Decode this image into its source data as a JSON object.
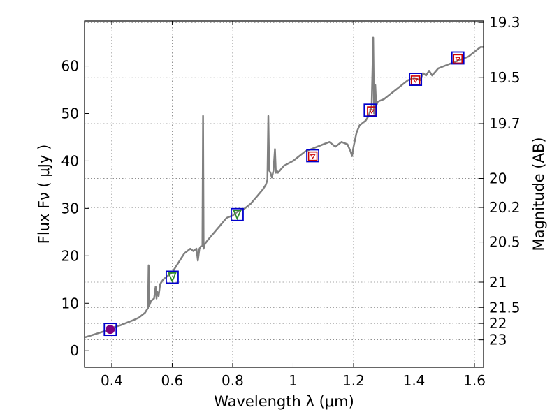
{
  "chart_data": {
    "type": "line",
    "xlabel": "Wavelength  λ (μm)",
    "ylabel": "Flux  Fν  ( μJy )",
    "ylabel_right": "Magnitude (AB)",
    "xlim": [
      0.31,
      1.63
    ],
    "ylim": [
      -3.5,
      69.5
    ],
    "grid": true,
    "x_ticks": [
      0.4,
      0.6,
      0.8,
      1.0,
      1.2,
      1.4,
      1.6
    ],
    "x_tick_labels": [
      "0.4",
      "0.6",
      "0.8",
      "1",
      "1.2",
      "1.4",
      "1.6"
    ],
    "y_ticks": [
      0,
      10,
      20,
      30,
      40,
      50,
      60
    ],
    "y_tick_labels": [
      "0",
      "10",
      "20",
      "30",
      "40",
      "50",
      "60"
    ],
    "magnitude_ticks": [
      19.3,
      19.5,
      19.7,
      20,
      20.2,
      20.5,
      21,
      21.5,
      22,
      23
    ],
    "magnitude_tick_labels": [
      "19.3",
      "19.5",
      "19.7",
      "20",
      "20.2",
      "20.5",
      "21",
      "21.5",
      "22",
      "23"
    ],
    "series": [
      {
        "name": "Spectrum",
        "color": "#808080",
        "x": [
          0.31,
          0.33,
          0.35,
          0.37,
          0.39,
          0.41,
          0.43,
          0.45,
          0.47,
          0.49,
          0.51,
          0.52,
          0.522,
          0.524,
          0.53,
          0.54,
          0.545,
          0.548,
          0.55,
          0.555,
          0.56,
          0.57,
          0.58,
          0.59,
          0.6,
          0.61,
          0.62,
          0.63,
          0.64,
          0.65,
          0.66,
          0.67,
          0.68,
          0.685,
          0.69,
          0.695,
          0.7,
          0.702,
          0.704,
          0.708,
          0.72,
          0.74,
          0.76,
          0.78,
          0.8,
          0.82,
          0.84,
          0.86,
          0.88,
          0.9,
          0.91,
          0.915,
          0.918,
          0.921,
          0.925,
          0.93,
          0.935,
          0.94,
          0.943,
          0.946,
          0.95,
          0.97,
          1.0,
          1.02,
          1.04,
          1.06,
          1.08,
          1.1,
          1.12,
          1.14,
          1.16,
          1.18,
          1.19,
          1.195,
          1.2,
          1.21,
          1.22,
          1.24,
          1.25,
          1.26,
          1.265,
          1.268,
          1.27,
          1.272,
          1.275,
          1.28,
          1.3,
          1.32,
          1.34,
          1.36,
          1.38,
          1.4,
          1.42,
          1.43,
          1.44,
          1.45,
          1.46,
          1.48,
          1.5,
          1.52,
          1.54,
          1.56,
          1.58,
          1.6,
          1.62,
          1.63
        ],
        "y": [
          2.8,
          3.2,
          3.6,
          4.0,
          4.5,
          5.0,
          5.4,
          5.9,
          6.4,
          7.0,
          8.0,
          9.0,
          18.0,
          9.5,
          10.5,
          11.0,
          13.5,
          11.0,
          12.5,
          11.5,
          14.0,
          15.0,
          15.5,
          16.0,
          16.5,
          17.5,
          18.5,
          19.5,
          20.5,
          21.0,
          21.5,
          21.0,
          21.5,
          19.0,
          21.5,
          22.0,
          22.0,
          49.5,
          21.5,
          22.5,
          23.5,
          25.0,
          26.5,
          28.0,
          28.5,
          29.5,
          30.0,
          31.0,
          32.5,
          34.0,
          35.0,
          36.0,
          49.5,
          38.0,
          37.5,
          36.5,
          38.0,
          42.5,
          37.5,
          38.0,
          37.5,
          39.0,
          40.0,
          41.0,
          42.0,
          42.5,
          43.0,
          43.5,
          44.0,
          43.0,
          44.0,
          43.5,
          42.0,
          41.0,
          43.0,
          46.0,
          47.5,
          48.5,
          49.5,
          51.5,
          66.0,
          50.0,
          52.5,
          56.0,
          51.5,
          52.5,
          53.0,
          54.0,
          55.0,
          56.0,
          57.0,
          57.5,
          57.0,
          58.5,
          58.0,
          59.0,
          58.0,
          59.5,
          60.0,
          60.5,
          61.0,
          61.5,
          62.0,
          63.0,
          64.0,
          64.0
        ]
      },
      {
        "name": "Photometric points (blue squares)",
        "color": "#0000cc",
        "x": [
          0.395,
          0.6,
          0.815,
          1.065,
          1.255,
          1.405,
          1.545
        ],
        "y": [
          4.5,
          15.5,
          28.7,
          41.1,
          50.7,
          57.2,
          61.7
        ]
      },
      {
        "name": "Model points (red squares)",
        "color": "#cc0000",
        "x": [
          1.065,
          1.26,
          1.405,
          1.545
        ],
        "y": [
          41.0,
          50.5,
          57.0,
          61.5
        ]
      }
    ],
    "annotations": [
      {
        "label": "purple-circle",
        "color": "#800080",
        "x": 0.395,
        "y": 4.5
      },
      {
        "label": "green-marker",
        "color": "#2e8b2e",
        "x": 0.6,
        "y": 15.5
      },
      {
        "label": "green-marker",
        "color": "#2e8b2e",
        "x": 0.815,
        "y": 28.7
      }
    ]
  }
}
